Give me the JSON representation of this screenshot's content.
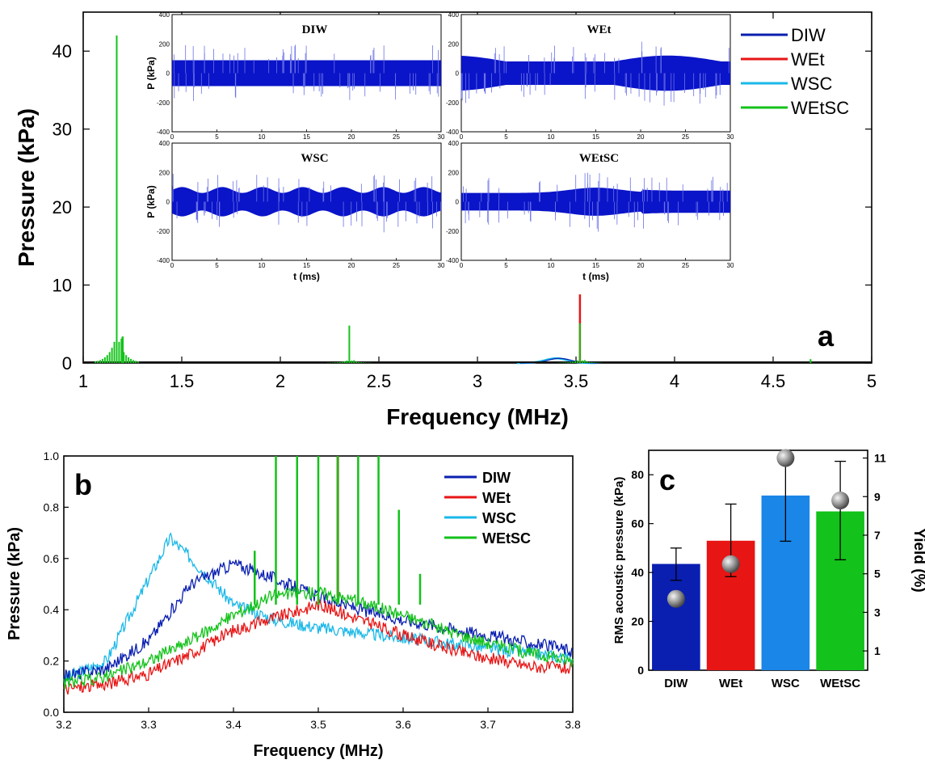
{
  "colors": {
    "DIW": "#0a1fb0",
    "WEt": "#e81515",
    "WSC": "#1ab8e8",
    "WEtSC": "#13c21a",
    "inset_signal": "#0a14c8"
  },
  "chart_data": [
    {
      "panel": "a",
      "type": "line",
      "xlabel": "Frequency (MHz)",
      "ylabel": "Pressure (kPa)",
      "xlim": [
        1,
        5
      ],
      "ylim": [
        0,
        45
      ],
      "x_ticks": [
        "1",
        "1.5",
        "2",
        "2.5",
        "3",
        "3.5",
        "4",
        "4.5",
        "5"
      ],
      "y_ticks": [
        "0",
        "10",
        "20",
        "30",
        "40"
      ],
      "legend": [
        "DIW",
        "WEt",
        "WSC",
        "WEtSC"
      ],
      "legend_position": "top-right",
      "series": [
        {
          "name": "WEtSC",
          "peaks": [
            [
              1.17,
              42
            ],
            [
              1.2,
              3.4
            ],
            [
              2.35,
              4.8
            ],
            [
              3.52,
              5.1
            ],
            [
              4.69,
              0.5
            ]
          ]
        },
        {
          "name": "WEt",
          "peaks": [
            [
              3.52,
              8.8
            ]
          ]
        },
        {
          "name": "WSC",
          "peaks": [
            [
              3.35,
              0.6
            ]
          ]
        },
        {
          "name": "DIW",
          "peaks": [
            [
              3.4,
              0.5
            ]
          ]
        }
      ],
      "insets": [
        {
          "title": "DIW",
          "ylabel": "P (kPa)",
          "xlabel": "",
          "xlim": [
            0,
            30
          ],
          "ylim": [
            -400,
            400
          ],
          "x_ticks": [
            "0",
            "5",
            "10",
            "15",
            "20",
            "25",
            "30"
          ],
          "y_ticks": [
            "400",
            "200",
            "0",
            "-200",
            "-400"
          ]
        },
        {
          "title": "WEt",
          "ylabel": "",
          "xlabel": "",
          "xlim": [
            0,
            30
          ],
          "ylim": [
            -400,
            400
          ],
          "x_ticks": [
            "0",
            "5",
            "10",
            "15",
            "20",
            "25",
            "30"
          ],
          "y_ticks": [
            "400",
            "200",
            "0",
            "-200",
            "-400"
          ]
        },
        {
          "title": "WSC",
          "ylabel": "P (kPa)",
          "xlabel": "t (ms)",
          "xlim": [
            0,
            30
          ],
          "ylim": [
            -400,
            400
          ],
          "x_ticks": [
            "0",
            "5",
            "10",
            "15",
            "20",
            "25",
            "30"
          ],
          "y_ticks": [
            "400",
            "200",
            "0",
            "-200",
            "-400"
          ]
        },
        {
          "title": "WEtSC",
          "ylabel": "",
          "xlabel": "t (ms)",
          "xlim": [
            0,
            30
          ],
          "ylim": [
            -400,
            400
          ],
          "x_ticks": [
            "0",
            "5",
            "10",
            "15",
            "20",
            "25",
            "30"
          ],
          "y_ticks": [
            "400",
            "200",
            "0",
            "-200",
            "-400"
          ]
        }
      ]
    },
    {
      "panel": "b",
      "type": "line",
      "xlabel": "Frequency (MHz)",
      "ylabel": "Pressure (kPa)",
      "xlim": [
        3.2,
        3.8
      ],
      "ylim": [
        0,
        1.0
      ],
      "x_ticks": [
        "3.2",
        "3.3",
        "3.4",
        "3.5",
        "3.6",
        "3.7",
        "3.8"
      ],
      "y_ticks": [
        "0.0",
        "0.2",
        "0.4",
        "0.6",
        "0.8",
        "1.0"
      ],
      "legend": [
        "DIW",
        "WEt",
        "WSC",
        "WEtSC"
      ],
      "legend_position": "top-right",
      "series": [
        {
          "name": "DIW",
          "x": [
            3.2,
            3.25,
            3.3,
            3.35,
            3.4,
            3.45,
            3.5,
            3.55,
            3.6,
            3.65,
            3.7,
            3.75,
            3.8
          ],
          "y": [
            0.14,
            0.17,
            0.28,
            0.5,
            0.58,
            0.52,
            0.45,
            0.4,
            0.36,
            0.33,
            0.3,
            0.27,
            0.24
          ]
        },
        {
          "name": "WEt",
          "x": [
            3.2,
            3.25,
            3.3,
            3.35,
            3.4,
            3.45,
            3.5,
            3.55,
            3.6,
            3.65,
            3.7,
            3.75,
            3.8
          ],
          "y": [
            0.09,
            0.11,
            0.15,
            0.23,
            0.32,
            0.37,
            0.42,
            0.36,
            0.3,
            0.25,
            0.21,
            0.18,
            0.17
          ]
        },
        {
          "name": "WSC",
          "x": [
            3.2,
            3.25,
            3.3,
            3.325,
            3.35,
            3.4,
            3.45,
            3.5,
            3.55,
            3.6,
            3.65,
            3.7,
            3.75,
            3.8
          ],
          "y": [
            0.13,
            0.2,
            0.52,
            0.68,
            0.6,
            0.42,
            0.36,
            0.33,
            0.31,
            0.29,
            0.27,
            0.25,
            0.23,
            0.21
          ]
        },
        {
          "name": "WEtSC",
          "x": [
            3.2,
            3.25,
            3.3,
            3.35,
            3.4,
            3.45,
            3.5,
            3.55,
            3.6,
            3.65,
            3.7,
            3.75,
            3.8
          ],
          "y": [
            0.11,
            0.14,
            0.2,
            0.28,
            0.38,
            0.46,
            0.47,
            0.43,
            0.38,
            0.32,
            0.27,
            0.23,
            0.2
          ]
        }
      ],
      "spikes_WEtSC": [
        3.425,
        3.45,
        3.475,
        3.5,
        3.523,
        3.547,
        3.571,
        3.595,
        3.62
      ],
      "spike_tops": [
        0.63,
        1.0,
        1.0,
        1.0,
        1.0,
        1.0,
        1.0,
        0.79,
        0.54
      ],
      "spike_WEt": {
        "x": 3.523,
        "y": 1.0
      }
    },
    {
      "panel": "c",
      "type": "bar",
      "categories": [
        "DIW",
        "WEt",
        "WSC",
        "WEtSC"
      ],
      "ylabel": "RMS acoustic pressure (kPa)",
      "y2label": "Yield (%)",
      "ylim": [
        0,
        90
      ],
      "y2lim": [
        0,
        11.4
      ],
      "y_ticks": [
        "0",
        "20",
        "40",
        "60",
        "80"
      ],
      "y2_ticks": [
        "1",
        "3",
        "5",
        "7",
        "9",
        "11"
      ],
      "values": [
        43.5,
        53,
        71.5,
        65
      ],
      "error_low": [
        36.8,
        38.3,
        52.8,
        45.2
      ],
      "error_high": [
        50,
        68,
        90,
        85.5
      ],
      "yield": [
        3.7,
        5.5,
        11,
        8.8
      ]
    }
  ],
  "panel_letters": {
    "a": "a",
    "b": "b",
    "c": "c"
  }
}
